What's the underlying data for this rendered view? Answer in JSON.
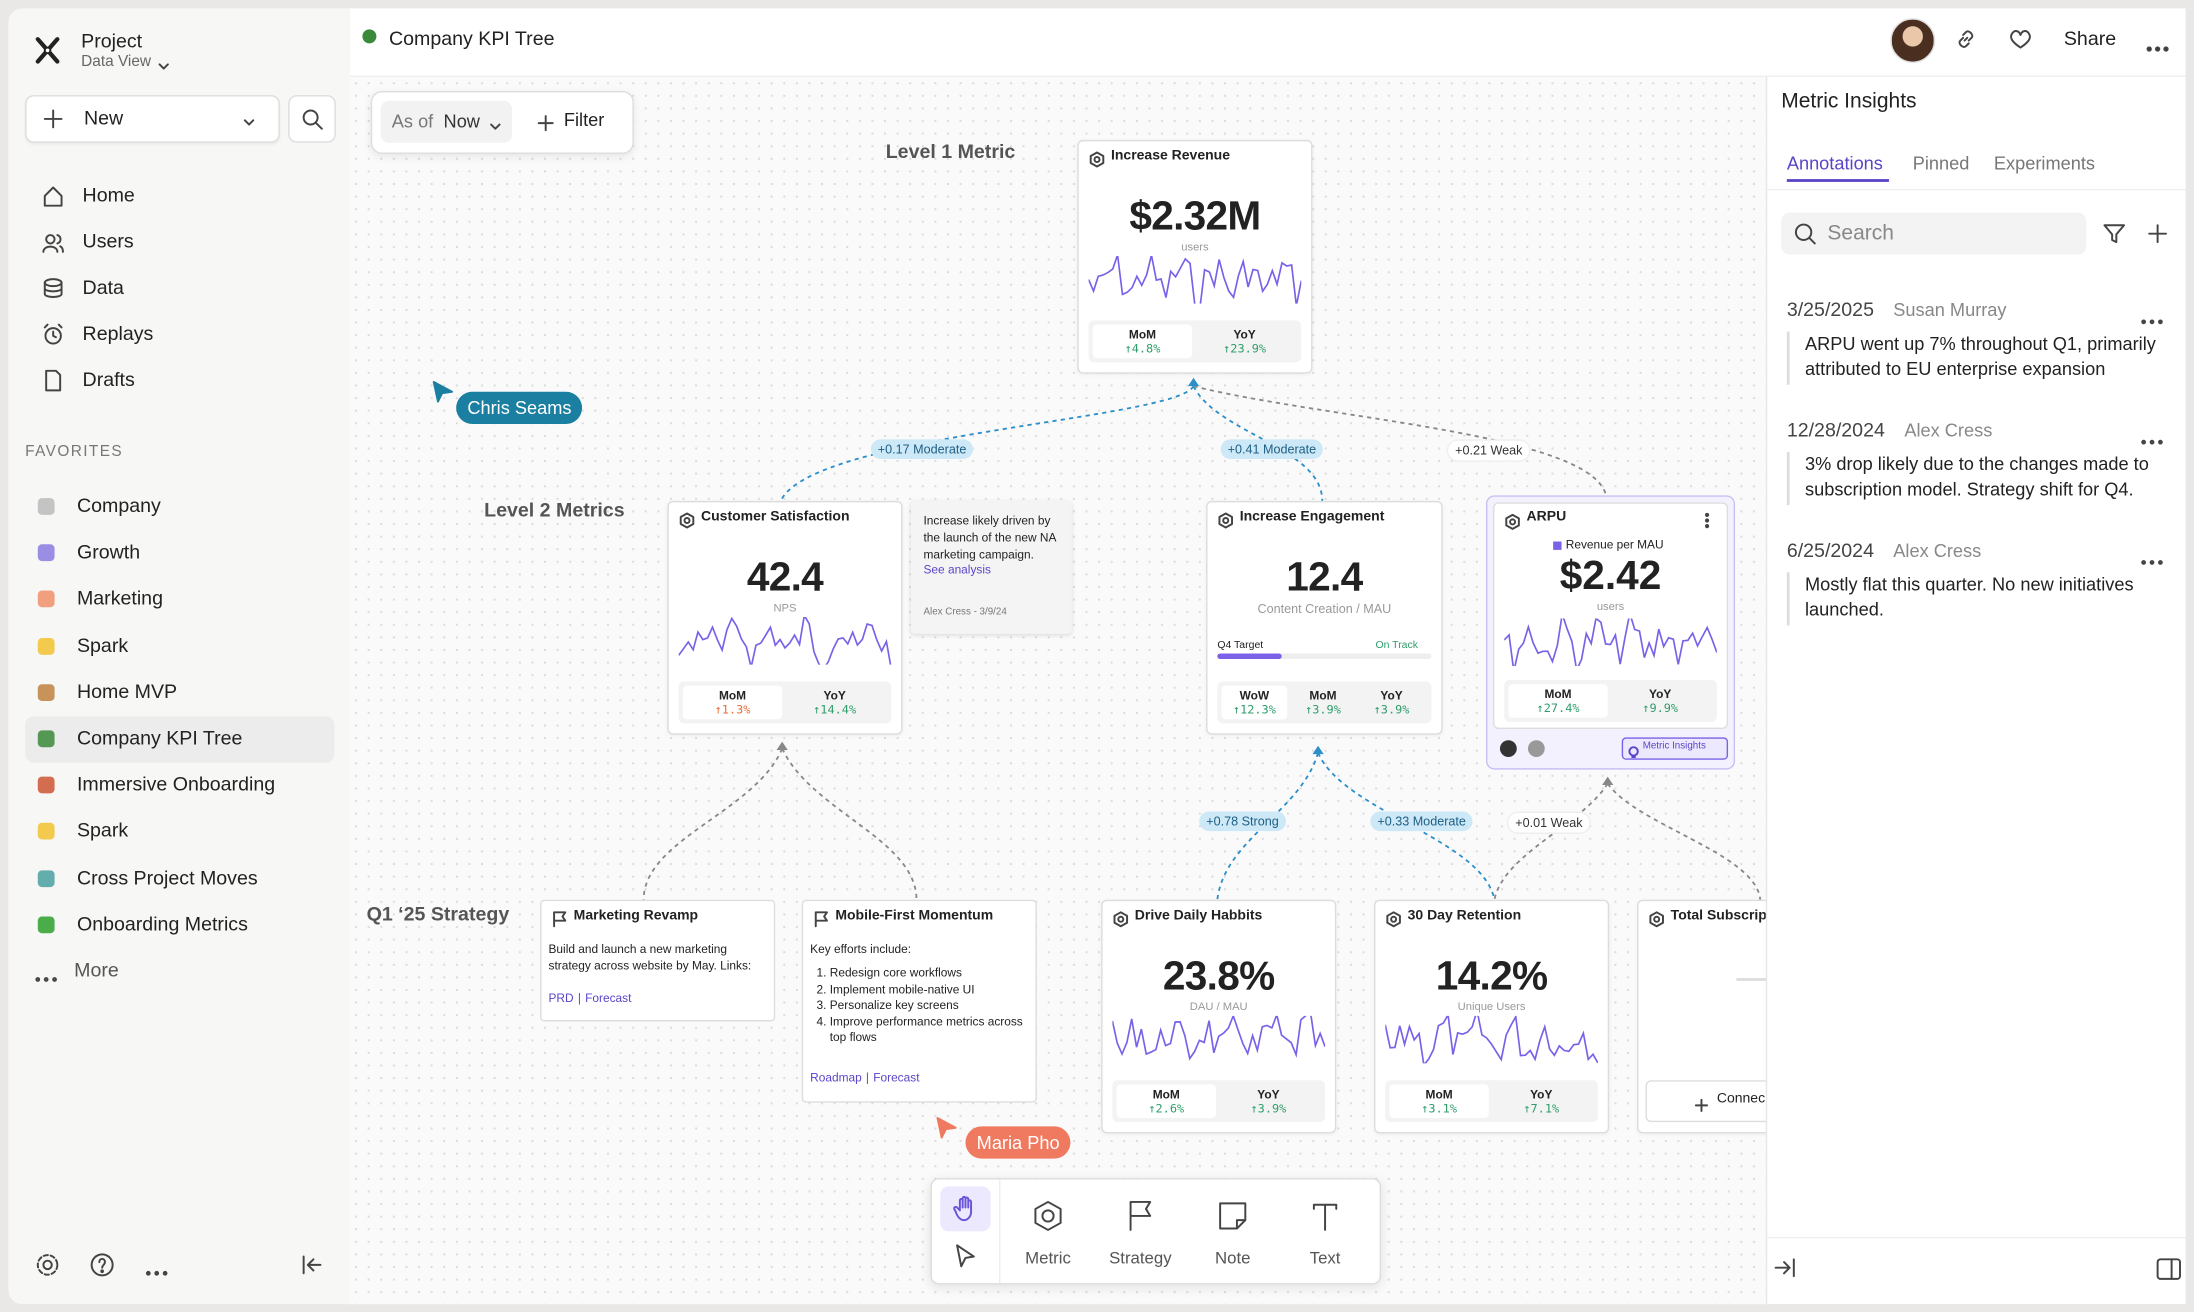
{
  "sidebar": {
    "project": "Project",
    "view": "Data View",
    "new_button": "New",
    "nav": [
      "Home",
      "Users",
      "Data",
      "Replays",
      "Drafts"
    ],
    "favorites_label": "FAVORITES",
    "favorites": [
      "Company",
      "Growth",
      "Marketing",
      "Spark",
      "Home MVP",
      "Company KPI Tree",
      "Immersive Onboarding",
      "Spark",
      "Cross Project Moves",
      "Onboarding Metrics"
    ],
    "more": "More"
  },
  "header": {
    "title": "Company KPI Tree",
    "share": "Share"
  },
  "toolbar": {
    "as_of": "As of",
    "as_of_value": "Now",
    "filter": "Filter"
  },
  "levels": [
    "Level 1 Metric",
    "Level 2 Metrics",
    "Q1 ‘25 Strategy"
  ],
  "collaborators": [
    "Chris Seams",
    "Maria Pho"
  ],
  "metrics": [
    {
      "title": "Increase Revenue",
      "value": "$2.32M",
      "unit": "users",
      "comparisons": [
        {
          "label": "MoM",
          "value": "↑4.8%",
          "color": "#2f9e6b"
        },
        {
          "label": "YoY",
          "value": "↑23.9%",
          "color": "#2f9e6b"
        }
      ]
    },
    {
      "title": "Customer Satisfaction",
      "value": "42.4",
      "unit": "NPS",
      "comparisons": [
        {
          "label": "MoM",
          "value": "↑1.3%",
          "color": "#e8703a"
        },
        {
          "label": "YoY",
          "value": "↑14.4%",
          "color": "#2f9e6b"
        }
      ]
    },
    {
      "title": "Increase Engagement",
      "value": "12.4",
      "unit": "Content Creation / MAU",
      "target": "Q4 Target",
      "status": "On Track",
      "comparisons": [
        {
          "label": "WoW",
          "value": "↑12.3%",
          "color": "#2f9e6b"
        },
        {
          "label": "MoM",
          "value": "↑3.9%",
          "color": "#2f9e6b"
        },
        {
          "label": "YoY",
          "value": "↑3.9%",
          "color": "#2f9e6b"
        }
      ]
    },
    {
      "title": "ARPU",
      "subtitle": "Revenue per MAU",
      "value": "$2.42",
      "unit": "users",
      "badge": "Metric Insights",
      "comparisons": [
        {
          "label": "MoM",
          "value": "↑27.4%",
          "color": "#2f9e6b"
        },
        {
          "label": "YoY",
          "value": "↑9.9%",
          "color": "#2f9e6b"
        }
      ]
    },
    {
      "title": "Drive Daily Habbits",
      "value": "23.8%",
      "unit": "DAU / MAU",
      "comparisons": [
        {
          "label": "MoM",
          "value": "↑2.6%",
          "color": "#2f9e6b"
        },
        {
          "label": "YoY",
          "value": "↑3.9%",
          "color": "#2f9e6b"
        }
      ]
    },
    {
      "title": "30 Day Retention",
      "value": "14.2%",
      "unit": "Unique Users",
      "comparisons": [
        {
          "label": "MoM",
          "value": "↑3.1%",
          "color": "#2f9e6b"
        },
        {
          "label": "YoY",
          "value": "↑7.1%",
          "color": "#2f9e6b"
        }
      ]
    },
    {
      "title": "Total Subscript",
      "action": "Connec"
    }
  ],
  "note": {
    "text": "Increase likely driven by the launch of the new NA marketing campaign.",
    "link": "See analysis",
    "author": "Alex Cress - 3/9/24"
  },
  "strategies": [
    {
      "title": "Marketing Revamp",
      "body": "Build and launch a new marketing strategy across website by May. Links:",
      "links": [
        "PRD",
        "Forecast"
      ],
      "separator": "|"
    },
    {
      "title": "Mobile-First Momentum",
      "body": "Key efforts include:",
      "items": [
        "Redesign core workflows",
        "Implement mobile-native UI",
        "Personalize key screens",
        "Improve performance metrics across top flows"
      ],
      "links": [
        "Roadmap",
        "Forecast"
      ],
      "separator": "|"
    }
  ],
  "correlations": [
    {
      "label": "+0.17 Moderate",
      "color": "#2b8fc9"
    },
    {
      "label": "+0.41 Moderate",
      "color": "#2b8fc9"
    },
    {
      "label": "+0.21 Weak",
      "color": "#888888"
    },
    {
      "label": "+0.78 Strong",
      "color": "#2b8fc9"
    },
    {
      "label": "+0.33 Moderate",
      "color": "#2b8fc9"
    },
    {
      "label": "+0.01 Weak",
      "color": "#888888"
    }
  ],
  "tools": [
    "Metric",
    "Strategy",
    "Note",
    "Text"
  ],
  "insights": {
    "title": "Metric Insights",
    "tabs": [
      "Annotations",
      "Pinned",
      "Experiments"
    ],
    "search": "Search",
    "annotations": [
      {
        "date": "3/25/2025",
        "author": "Susan Murray",
        "text": "ARPU went up 7% throughout Q1, primarily attributed to EU enterprise expansion"
      },
      {
        "date": "12/28/2024",
        "author": "Alex Cress",
        "text": "3% drop likely due to the changes made to subscription model. Strategy shift for Q4."
      },
      {
        "date": "6/25/2024",
        "author": "Alex Cress",
        "text": "Mostly flat this quarter. No new initiatives launched."
      }
    ]
  }
}
